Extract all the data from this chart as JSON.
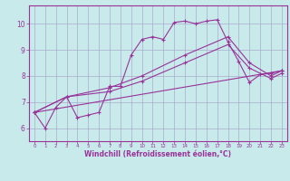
{
  "background_color": "#c8eaea",
  "line_color": "#993399",
  "grid_color": "#aaaacc",
  "xlabel": "Windchill (Refroidissement éolien,°C)",
  "xlabel_color": "#993399",
  "xtick_color": "#993399",
  "ytick_color": "#993399",
  "xlim": [
    -0.5,
    23.5
  ],
  "ylim": [
    5.5,
    10.7
  ],
  "yticks": [
    6,
    7,
    8,
    9,
    10
  ],
  "xticks": [
    0,
    1,
    2,
    3,
    4,
    5,
    6,
    7,
    8,
    9,
    10,
    11,
    12,
    13,
    14,
    15,
    16,
    17,
    18,
    19,
    20,
    21,
    22,
    23
  ],
  "series": [
    {
      "x": [
        0,
        1,
        2,
        3,
        4,
        5,
        6,
        7,
        8,
        9,
        10,
        11,
        12,
        13,
        14,
        15,
        16,
        17,
        18,
        19,
        20,
        21,
        22,
        23
      ],
      "y": [
        6.6,
        6.0,
        6.8,
        7.2,
        6.4,
        6.5,
        6.6,
        7.6,
        7.6,
        8.8,
        9.4,
        9.5,
        9.4,
        10.05,
        10.1,
        10.0,
        10.1,
        10.15,
        9.3,
        8.55,
        7.75,
        8.05,
        8.1,
        8.2
      ]
    },
    {
      "x": [
        0,
        3,
        7,
        10,
        14,
        18,
        20,
        22,
        23
      ],
      "y": [
        6.6,
        7.2,
        7.55,
        8.0,
        8.8,
        9.5,
        8.5,
        8.0,
        8.2
      ]
    },
    {
      "x": [
        0,
        3,
        7,
        10,
        14,
        18,
        20,
        22,
        23
      ],
      "y": [
        6.6,
        7.2,
        7.4,
        7.8,
        8.5,
        9.2,
        8.3,
        7.9,
        8.1
      ]
    },
    {
      "x": [
        0,
        23
      ],
      "y": [
        6.6,
        8.2
      ]
    }
  ]
}
